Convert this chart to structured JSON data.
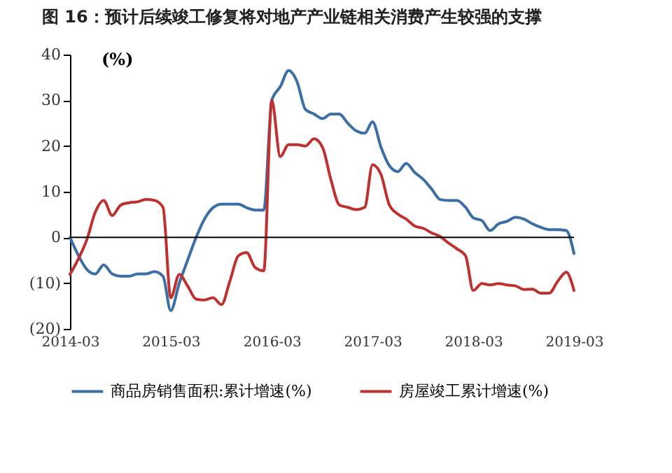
{
  "chart_data": {
    "type": "line",
    "title": "图 16：预计后续竣工修复将对地产产业链相关消费产生较强的支撑",
    "ylabel": "(%)",
    "x": [
      "2014-03",
      "2014-04",
      "2014-05",
      "2014-06",
      "2014-07",
      "2014-08",
      "2014-09",
      "2014-10",
      "2014-11",
      "2014-12",
      "2015-01",
      "2015-02",
      "2015-03",
      "2015-04",
      "2015-05",
      "2015-06",
      "2015-07",
      "2015-08",
      "2015-09",
      "2015-10",
      "2015-11",
      "2015-12",
      "2016-01",
      "2016-02",
      "2016-03",
      "2016-04",
      "2016-05",
      "2016-06",
      "2016-07",
      "2016-08",
      "2016-09",
      "2016-10",
      "2016-11",
      "2016-12",
      "2017-01",
      "2017-02",
      "2017-03",
      "2017-04",
      "2017-05",
      "2017-06",
      "2017-07",
      "2017-08",
      "2017-09",
      "2017-10",
      "2017-11",
      "2017-12",
      "2018-01",
      "2018-02",
      "2018-03",
      "2018-04",
      "2018-05",
      "2018-06",
      "2018-07",
      "2018-08",
      "2018-09",
      "2018-10",
      "2018-11",
      "2018-12",
      "2019-01",
      "2019-02",
      "2019-03"
    ],
    "series": [
      {
        "name": "商品房销售面积:累计增速(%)",
        "color": "#3a6ea5",
        "values": [
          0,
          -4,
          -7,
          -8,
          -6,
          -8,
          -8.5,
          -8.5,
          -8,
          -8,
          -7.5,
          -8.5,
          -16,
          -10,
          -5,
          0,
          4,
          6.5,
          7.3,
          7.3,
          7.3,
          6.5,
          6,
          6,
          30,
          33,
          36.5,
          34,
          28,
          27,
          26,
          27,
          27,
          25,
          23.3,
          22.8,
          25.3,
          19.7,
          15.7,
          14.4,
          16.2,
          14.2,
          12.7,
          10.6,
          8.3,
          8.1,
          8.1,
          6.6,
          4.3,
          3.7,
          1.5,
          3,
          3.5,
          4.4,
          4,
          3,
          2.2,
          1.7,
          1.7,
          1.5,
          -3.5
        ]
      },
      {
        "name": "房屋竣工累计增速(%)",
        "color": "#c0302e",
        "values": [
          -8.1,
          -4.6,
          -0.5,
          5.6,
          8.1,
          4.8,
          7.1,
          7.6,
          7.8,
          8.3,
          8.1,
          6.6,
          -13.2,
          -8.1,
          -10.6,
          -13.5,
          -13.7,
          -13.2,
          -14.7,
          -9.6,
          -4,
          -3.3,
          -6.6,
          -7.3,
          29.9,
          17.7,
          20.3,
          20.3,
          20,
          21.6,
          19.7,
          12.7,
          7.1,
          6.6,
          6.1,
          6.6,
          15.9,
          13.7,
          7.1,
          5.1,
          4,
          2.5,
          2,
          1,
          0.2,
          -1.2,
          -2.5,
          -4,
          -11.6,
          -10.1,
          -10.4,
          -10.1,
          -10.4,
          -10.6,
          -11.4,
          -11.3,
          -12.2,
          -12.2,
          -9.6,
          -7.6,
          -11.6
        ]
      }
    ],
    "xlim": [
      "2014-03",
      "2019-03"
    ],
    "xticks": [
      "2014-03",
      "2015-03",
      "2016-03",
      "2017-03",
      "2018-03",
      "2019-03"
    ],
    "ylim": [
      -20,
      40
    ],
    "yticks": [
      {
        "value": -20,
        "label": "(20)"
      },
      {
        "value": -10,
        "label": "(10)"
      },
      0,
      10,
      20,
      30,
      40
    ],
    "ref_lines": [
      {
        "axis": "y",
        "value": 0,
        "color": "#000000"
      }
    ],
    "grid": false,
    "legend": "bottom"
  }
}
